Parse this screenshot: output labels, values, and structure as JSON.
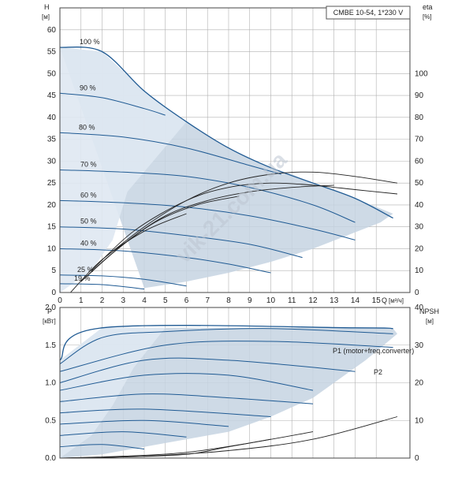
{
  "badge": "CMBE 10-54, 1*230 V",
  "colors": {
    "curve": "#1f5a93",
    "eff": "#222222",
    "envelope": "#c5d3e2",
    "envelope_light": "#dfe8f2",
    "grid": "#b0b0b0",
    "text": "#222222",
    "watermark": "#bcc6d2"
  },
  "watermark": "vik-21.com.ua",
  "chart_data": [
    {
      "type": "line",
      "name": "head",
      "xlabel": "Q",
      "xunit": "[м³/ч]",
      "ylabel": "H",
      "yunit": "[м]",
      "y2label": "eta",
      "y2unit": "[%]",
      "xlim": [
        0,
        16.6
      ],
      "ylim": [
        0,
        65
      ],
      "y2lim": [
        0,
        130
      ],
      "xticks": [
        0,
        1,
        2,
        3,
        4,
        5,
        6,
        7,
        8,
        9,
        10,
        11,
        12,
        13,
        14,
        15
      ],
      "yticks": [
        0,
        5,
        10,
        15,
        20,
        25,
        30,
        35,
        40,
        45,
        50,
        55,
        60
      ],
      "y2ticks": [
        0,
        10,
        20,
        30,
        40,
        50,
        60,
        70,
        80,
        90,
        100
      ],
      "grid": true,
      "envelope": [
        [
          0,
          56
        ],
        [
          2,
          55
        ],
        [
          4,
          46
        ],
        [
          6,
          39
        ],
        [
          8,
          33
        ],
        [
          10,
          28.5
        ],
        [
          11,
          27
        ],
        [
          12,
          25
        ],
        [
          14,
          21.5
        ],
        [
          15.8,
          18
        ],
        [
          15.2,
          16
        ],
        [
          12,
          10
        ],
        [
          10,
          7
        ],
        [
          8,
          4.5
        ],
        [
          6,
          2.5
        ],
        [
          4,
          1
        ]
      ],
      "series": [
        {
          "label": "100 %",
          "points": [
            [
              0,
              56
            ],
            [
              2,
              55
            ],
            [
              4,
              46
            ],
            [
              6,
              39
            ],
            [
              8,
              33
            ],
            [
              10,
              28.5
            ],
            [
              12,
              25
            ],
            [
              14,
              21.5
            ],
            [
              15.8,
              17
            ]
          ]
        },
        {
          "label": "90 %",
          "points": [
            [
              0,
              45.5
            ],
            [
              2,
              44.5
            ],
            [
              4,
              42
            ],
            [
              5,
              40.5
            ]
          ]
        },
        {
          "label": "80 %",
          "points": [
            [
              0,
              36.5
            ],
            [
              3,
              35.5
            ],
            [
              6,
              33
            ],
            [
              9,
              29
            ],
            [
              10.5,
              27
            ]
          ]
        },
        {
          "label": "70 %",
          "points": [
            [
              0,
              28
            ],
            [
              3,
              27.5
            ],
            [
              6,
              26.5
            ],
            [
              9,
              24
            ],
            [
              12,
              20
            ],
            [
              14,
              16
            ]
          ]
        },
        {
          "label": "60 %",
          "points": [
            [
              0,
              21
            ],
            [
              3,
              20.5
            ],
            [
              6,
              19.5
            ],
            [
              9,
              17.5
            ],
            [
              12,
              14.5
            ],
            [
              14,
              12
            ]
          ]
        },
        {
          "label": "50 %",
          "points": [
            [
              0,
              15
            ],
            [
              3,
              14.5
            ],
            [
              6,
              13
            ],
            [
              9,
              11
            ],
            [
              11.5,
              8
            ]
          ]
        },
        {
          "label": "40 %",
          "points": [
            [
              0,
              10
            ],
            [
              3,
              9.5
            ],
            [
              6,
              8
            ],
            [
              8,
              6.5
            ],
            [
              10,
              4.5
            ]
          ]
        },
        {
          "label": "25 %",
          "points": [
            [
              0,
              4
            ],
            [
              2,
              3.8
            ],
            [
              4,
              3
            ],
            [
              6,
              1.5
            ]
          ]
        },
        {
          "label": "19 %",
          "points": [
            [
              0,
              2
            ],
            [
              2,
              1.8
            ],
            [
              4,
              0.8
            ]
          ]
        }
      ],
      "efficiency": [
        {
          "points": [
            [
              2,
              15
            ],
            [
              4,
              30
            ],
            [
              6,
              42
            ],
            [
              8,
              50
            ],
            [
              10,
              54
            ],
            [
              12,
              55
            ],
            [
              14,
              53
            ],
            [
              16,
              50
            ]
          ]
        },
        {
          "points": [
            [
              1.5,
              10
            ],
            [
              3.5,
              28
            ],
            [
              6,
              42
            ],
            [
              8,
              48
            ],
            [
              10,
              50
            ],
            [
              12,
              49
            ],
            [
              14,
              47
            ],
            [
              16,
              45
            ]
          ]
        },
        {
          "points": [
            [
              1,
              5
            ],
            [
              3,
              22
            ],
            [
              5,
              35
            ],
            [
              7,
              42
            ],
            [
              9,
              46
            ],
            [
              11,
              48
            ],
            [
              13,
              49
            ]
          ]
        },
        {
          "points": [
            [
              1,
              5
            ],
            [
              2.5,
              18
            ],
            [
              4.5,
              32
            ],
            [
              6.5,
              40
            ],
            [
              8.5,
              44
            ]
          ]
        },
        {
          "points": [
            [
              0.5,
              0
            ],
            [
              2,
              15
            ],
            [
              4,
              28
            ],
            [
              6,
              36
            ]
          ]
        }
      ]
    },
    {
      "type": "line",
      "name": "power",
      "xlabel": "",
      "ylabel": "P",
      "yunit": "[кВт]",
      "y2label": "NPSH",
      "y2unit": "[м]",
      "xlim": [
        0,
        16.6
      ],
      "ylim": [
        0,
        2.0
      ],
      "y2lim": [
        0,
        40
      ],
      "yticks": [
        0.0,
        0.5,
        1.0,
        1.5,
        2.0
      ],
      "y2ticks": [
        0,
        10,
        20,
        30,
        40
      ],
      "grid": true,
      "series_labels": [
        "P1 (motor+freq.converter)",
        "P2"
      ],
      "envelope": [
        [
          0,
          1.3
        ],
        [
          2,
          1.73
        ],
        [
          14,
          1.73
        ],
        [
          15.8,
          1.72
        ],
        [
          16,
          1.65
        ],
        [
          14.5,
          1.3
        ],
        [
          12,
          0.8
        ],
        [
          10,
          0.55
        ],
        [
          8,
          0.35
        ],
        [
          6,
          0.25
        ],
        [
          4,
          0.15
        ],
        [
          2,
          0.05
        ],
        [
          0,
          0
        ]
      ],
      "series": [
        {
          "points": [
            [
              0,
              1.3
            ],
            [
              2,
              1.73
            ],
            [
              14,
              1.73
            ],
            [
              15.8,
              1.72
            ]
          ]
        },
        {
          "points": [
            [
              0,
              1.25
            ],
            [
              2,
              1.6
            ],
            [
              5,
              1.68
            ],
            [
              10,
              1.72
            ],
            [
              15.8,
              1.65
            ]
          ]
        },
        {
          "points": [
            [
              0,
              1.15
            ],
            [
              5,
              1.5
            ],
            [
              10,
              1.55
            ],
            [
              15.8,
              1.47
            ]
          ]
        },
        {
          "points": [
            [
              0,
              1.0
            ],
            [
              4,
              1.3
            ],
            [
              8,
              1.3
            ],
            [
              14,
              1.15
            ]
          ]
        },
        {
          "points": [
            [
              0,
              0.9
            ],
            [
              4,
              1.1
            ],
            [
              8,
              1.1
            ],
            [
              12,
              0.9
            ]
          ]
        },
        {
          "points": [
            [
              0,
              0.75
            ],
            [
              4,
              0.85
            ],
            [
              8,
              0.8
            ],
            [
              12,
              0.72
            ]
          ]
        },
        {
          "points": [
            [
              0,
              0.6
            ],
            [
              4,
              0.65
            ],
            [
              10,
              0.55
            ]
          ]
        },
        {
          "points": [
            [
              0,
              0.45
            ],
            [
              4,
              0.5
            ],
            [
              8,
              0.42
            ]
          ]
        },
        {
          "points": [
            [
              0,
              0.3
            ],
            [
              3,
              0.35
            ],
            [
              6,
              0.28
            ]
          ]
        },
        {
          "points": [
            [
              0,
              0.15
            ],
            [
              2,
              0.18
            ],
            [
              4,
              0.12
            ]
          ]
        }
      ],
      "npsh": [
        {
          "points": [
            [
              0,
              0
            ],
            [
              4,
              0.5
            ],
            [
              8,
              2
            ],
            [
              12,
              5
            ],
            [
              16,
              11
            ]
          ]
        },
        {
          "points": [
            [
              0,
              0
            ],
            [
              3,
              0.5
            ],
            [
              6,
              1.5
            ],
            [
              9,
              4
            ],
            [
              12,
              7
            ]
          ]
        },
        {
          "points": [
            [
              0,
              0
            ],
            [
              3,
              0.3
            ],
            [
              6,
              1
            ],
            [
              8,
              3
            ],
            [
              10,
              5
            ]
          ]
        }
      ]
    }
  ]
}
